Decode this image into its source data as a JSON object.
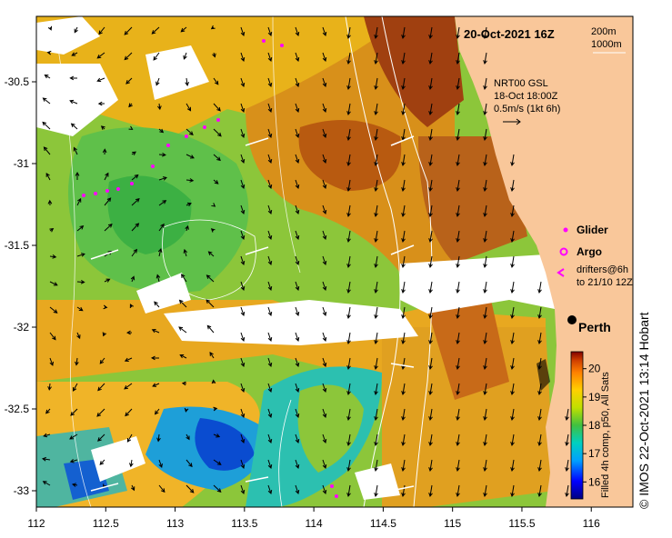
{
  "map": {
    "title": "20-Oct-2021 16Z",
    "depth_contours": [
      "200m",
      "1000m"
    ],
    "current_source": {
      "product": "NRT00 GSL",
      "time": "18-Oct 18:00Z",
      "scale": "0.5m/s (1kt 6h)"
    },
    "legend": {
      "glider": "Glider",
      "argo": "Argo",
      "drifters_line1": "drifters@6h",
      "drifters_line2": "to 21/10 12Z"
    },
    "city": "Perth",
    "colorbar": {
      "label": "Filled 4h comp, p50, All Sats",
      "ticks": [
        "16",
        "17",
        "18",
        "19",
        "20"
      ]
    },
    "credit": "© IMOS 22-Oct-2021 13:14 Hobart",
    "axes": {
      "x_ticks": [
        "112",
        "112.5",
        "113",
        "113.5",
        "114",
        "114.5",
        "115",
        "115.5",
        "116"
      ],
      "y_ticks": [
        "-30.5",
        "-31",
        "-31.5",
        "-32",
        "-32.5",
        "-33"
      ],
      "xlim": [
        112,
        116.3
      ],
      "ylim": [
        -33.1,
        -30.1
      ]
    },
    "colors": {
      "land": "#f9c79a",
      "cloud": "#ffffff",
      "glider": "#ff00ff",
      "contour": "#ffffff"
    }
  }
}
